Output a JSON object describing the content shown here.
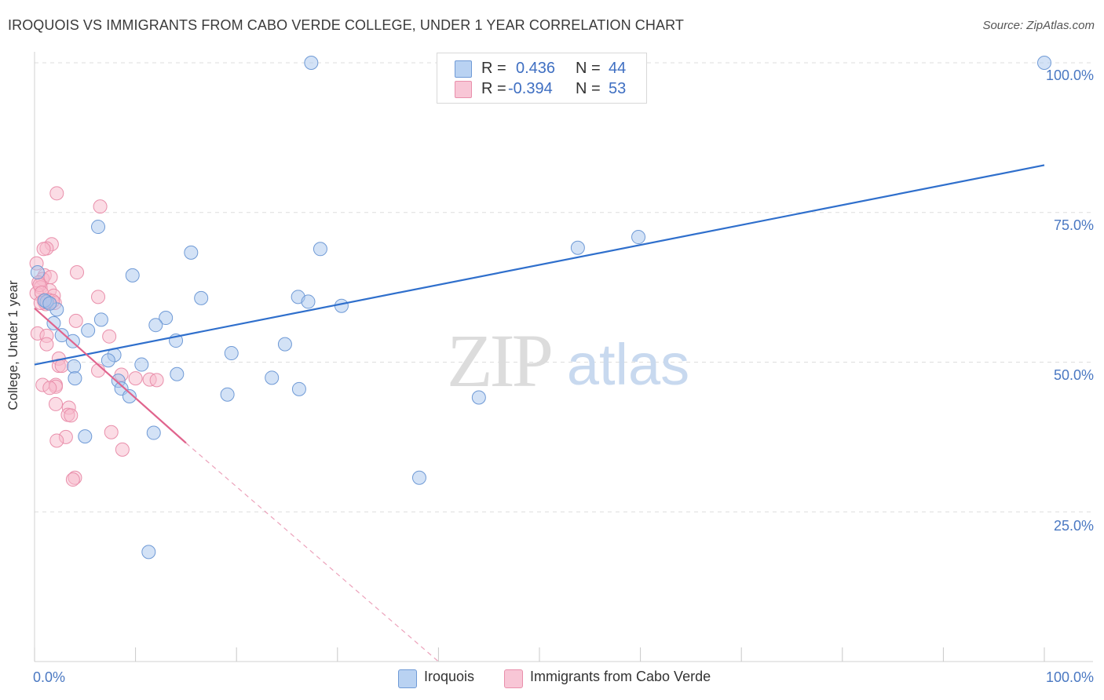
{
  "title": "IROQUOIS VS IMMIGRANTS FROM CABO VERDE COLLEGE, UNDER 1 YEAR CORRELATION CHART",
  "source": "Source: ZipAtlas.com",
  "watermark": {
    "zip": "ZIP",
    "atlas": "atlas"
  },
  "colors": {
    "blue_fill": "#a8c6ee",
    "blue_stroke": "#6f9ad6",
    "blue_line": "#2f6fcc",
    "pink_fill": "#f7b9cc",
    "pink_stroke": "#e98fab",
    "pink_line": "#e0648d",
    "grid": "#dddddd",
    "tick_text": "#4a78c2"
  },
  "legend": {
    "rows": [
      {
        "r_label": "R =",
        "r_value": "0.436",
        "n_label": "N =",
        "n_value": "44"
      },
      {
        "r_label": "R =",
        "r_value": "-0.394",
        "n_label": "N =",
        "n_value": "53"
      }
    ]
  },
  "bottom_legend": {
    "series1": "Iroquois",
    "series2": "Immigrants from Cabo Verde"
  },
  "chart_data": {
    "type": "scatter",
    "title": "IROQUOIS VS IMMIGRANTS FROM CABO VERDE COLLEGE, UNDER 1 YEAR CORRELATION CHART",
    "xlabel": "",
    "ylabel": "College, Under 1 year",
    "xlim": [
      0,
      100
    ],
    "ylim": [
      0,
      100
    ],
    "x_tick_labels": [
      "0.0%",
      "100.0%"
    ],
    "y_ticks": [
      25,
      50,
      75,
      100
    ],
    "y_tick_labels": [
      "25.0%",
      "50.0%",
      "75.0%",
      "100.0%"
    ],
    "grid": true,
    "series": [
      {
        "name": "Iroquois",
        "r": 0.436,
        "n": 44,
        "trend": {
          "x0": 0,
          "y0": 49.6,
          "x1": 100,
          "y1": 82.9
        },
        "points": [
          [
            27.4,
            100
          ],
          [
            100,
            100
          ],
          [
            6.3,
            72.6
          ],
          [
            15.5,
            68.3
          ],
          [
            28.3,
            68.9
          ],
          [
            53.8,
            69.1
          ],
          [
            59.8,
            70.9
          ],
          [
            9.7,
            64.5
          ],
          [
            16.5,
            60.7
          ],
          [
            26.1,
            60.9
          ],
          [
            27.1,
            60.1
          ],
          [
            30.4,
            59.4
          ],
          [
            2.2,
            58.8
          ],
          [
            6.6,
            57.1
          ],
          [
            13.0,
            57.4
          ],
          [
            1.9,
            56.5
          ],
          [
            12.0,
            56.2
          ],
          [
            5.3,
            55.3
          ],
          [
            2.7,
            54.5
          ],
          [
            3.8,
            53.5
          ],
          [
            14.0,
            53.6
          ],
          [
            24.8,
            53.0
          ],
          [
            7.9,
            51.2
          ],
          [
            19.5,
            51.5
          ],
          [
            7.3,
            50.3
          ],
          [
            1.2,
            60.1
          ],
          [
            0.3,
            65.0
          ],
          [
            3.9,
            49.3
          ],
          [
            10.6,
            49.6
          ],
          [
            4.0,
            47.3
          ],
          [
            14.1,
            48.0
          ],
          [
            23.5,
            47.4
          ],
          [
            8.3,
            46.9
          ],
          [
            8.6,
            45.6
          ],
          [
            26.2,
            45.5
          ],
          [
            9.4,
            44.3
          ],
          [
            19.1,
            44.6
          ],
          [
            44.0,
            44.1
          ],
          [
            11.8,
            38.2
          ],
          [
            5.0,
            37.6
          ],
          [
            38.1,
            30.7
          ],
          [
            11.3,
            18.3
          ],
          [
            1.0,
            60.3
          ],
          [
            1.5,
            59.8
          ]
        ]
      },
      {
        "name": "Immigrants from Cabo Verde",
        "r": -0.394,
        "n": 53,
        "trend": {
          "x0": 0,
          "y0": 59.0,
          "x1": 15.0,
          "y1": 36.5
        },
        "trend_dashed": {
          "x0": 15.0,
          "y0": 36.5,
          "x1": 40.0,
          "y1": 0
        },
        "points": [
          [
            2.2,
            78.2
          ],
          [
            6.5,
            76.0
          ],
          [
            1.7,
            69.7
          ],
          [
            1.2,
            69.0
          ],
          [
            0.9,
            68.9
          ],
          [
            0.2,
            66.5
          ],
          [
            4.2,
            65.0
          ],
          [
            1.0,
            64.5
          ],
          [
            0.8,
            63.9
          ],
          [
            1.6,
            64.2
          ],
          [
            0.4,
            63.3
          ],
          [
            0.6,
            62.5
          ],
          [
            1.5,
            62.0
          ],
          [
            0.2,
            61.5
          ],
          [
            1.9,
            61.1
          ],
          [
            6.3,
            60.9
          ],
          [
            0.9,
            60.3
          ],
          [
            1.1,
            59.7
          ],
          [
            1.3,
            60.0
          ],
          [
            4.1,
            56.9
          ],
          [
            0.3,
            54.8
          ],
          [
            1.2,
            54.4
          ],
          [
            7.4,
            54.3
          ],
          [
            1.2,
            53.0
          ],
          [
            2.4,
            50.6
          ],
          [
            2.4,
            49.4
          ],
          [
            2.7,
            49.4
          ],
          [
            6.3,
            48.6
          ],
          [
            8.6,
            47.9
          ],
          [
            10.0,
            47.3
          ],
          [
            11.4,
            47.1
          ],
          [
            12.1,
            47.0
          ],
          [
            0.8,
            46.2
          ],
          [
            2.1,
            46.2
          ],
          [
            2.1,
            45.9
          ],
          [
            1.5,
            45.7
          ],
          [
            2.1,
            43.0
          ],
          [
            3.4,
            42.4
          ],
          [
            3.3,
            41.2
          ],
          [
            3.6,
            41.1
          ],
          [
            7.6,
            38.3
          ],
          [
            3.1,
            37.5
          ],
          [
            2.2,
            36.9
          ],
          [
            8.7,
            35.4
          ],
          [
            4.0,
            30.7
          ],
          [
            3.8,
            30.4
          ],
          [
            0.5,
            62.9
          ],
          [
            1.0,
            60.0
          ],
          [
            0.7,
            61.6
          ],
          [
            1.4,
            60.4
          ],
          [
            0.6,
            59.9
          ],
          [
            2.0,
            59.9
          ],
          [
            1.8,
            60.2
          ]
        ]
      }
    ]
  }
}
